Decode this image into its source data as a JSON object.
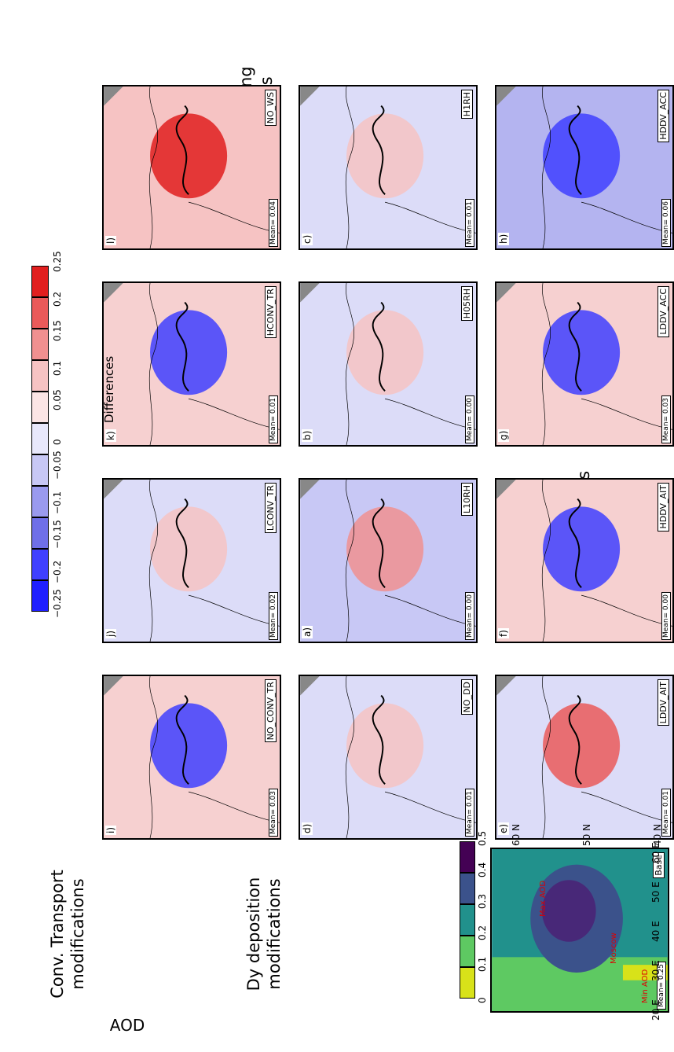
{
  "base_panel": {
    "label": "Base",
    "mean": "Mean= 0.25",
    "city_labels": [
      "Moscow",
      "Max AOD",
      "Min AOD"
    ],
    "lon_ticks": [
      "20 E",
      "30 E",
      "40 E",
      "50 E",
      "60 E"
    ],
    "lat_ticks": [
      "40 N",
      "50 N",
      "60 N"
    ]
  },
  "aod_colorbar": {
    "title": "AOD",
    "ticks": [
      "0",
      "0.1",
      "0.2",
      "0.3",
      "0.4",
      "0.5"
    ],
    "colors": [
      "#d8e219",
      "#5ec962",
      "#21918c",
      "#3b528b",
      "#440154"
    ]
  },
  "diff_colorbar": {
    "title": "Differences",
    "ticks": [
      "−0.25",
      "−0.2",
      "−0.15",
      "−0.1",
      "−0.05",
      "0",
      "0.05",
      "0.1",
      "0.15",
      "0.2",
      "0.25"
    ],
    "colors": [
      "#1f1fff",
      "#4040ff",
      "#6f6fe8",
      "#9a9aee",
      "#c8c8f5",
      "#e8e8fb",
      "#fbe5e5",
      "#f6c3c3",
      "#f09090",
      "#ea5a5a",
      "#e11f1f"
    ]
  },
  "row_titles": {
    "rh": "RH modifications",
    "dry": [
      "Dy deposition",
      "modifications"
    ],
    "conv": [
      "Conv. Transport",
      "modifications"
    ],
    "wet": [
      "Wet scavenging",
      "modifications"
    ]
  },
  "panels": [
    {
      "letter": "a)",
      "label": "L10RH",
      "mean": "Mean= 0.00",
      "tone": "mixed-red"
    },
    {
      "letter": "b)",
      "label": "H05RH",
      "mean": "Mean= 0.00",
      "tone": "mixed-light"
    },
    {
      "letter": "c)",
      "label": "H1RH",
      "mean": "Mean= 0.01",
      "tone": "mixed-light"
    },
    {
      "letter": "d)",
      "label": "NO_DD",
      "mean": "Mean= 0.01",
      "tone": "mixed-light"
    },
    {
      "letter": "e)",
      "label": "LDDV_AIT",
      "mean": "Mean= 0.01",
      "tone": "red-center"
    },
    {
      "letter": "f)",
      "label": "HDDV_AIT",
      "mean": "Mean= 0.00",
      "tone": "blue-center"
    },
    {
      "letter": "g)",
      "label": "LDDV_ACC",
      "mean": "Mean= 0.03",
      "tone": "blue-center"
    },
    {
      "letter": "h)",
      "label": "HDDV_ACC",
      "mean": "Mean= 0.06",
      "tone": "blue-wide"
    },
    {
      "letter": "i)",
      "label": "NO_CONV_TR",
      "mean": "Mean= 0.03",
      "tone": "blue-center"
    },
    {
      "letter": "j)",
      "label": "LCONV_TR",
      "mean": "Mean= 0.02",
      "tone": "mixed-light"
    },
    {
      "letter": "k)",
      "label": "HCONV_TR",
      "mean": "Mean= 0.01",
      "tone": "blue-center"
    },
    {
      "letter": "l)",
      "label": "NO_WS",
      "mean": "Mean= 0.04",
      "tone": "red-wide"
    }
  ]
}
